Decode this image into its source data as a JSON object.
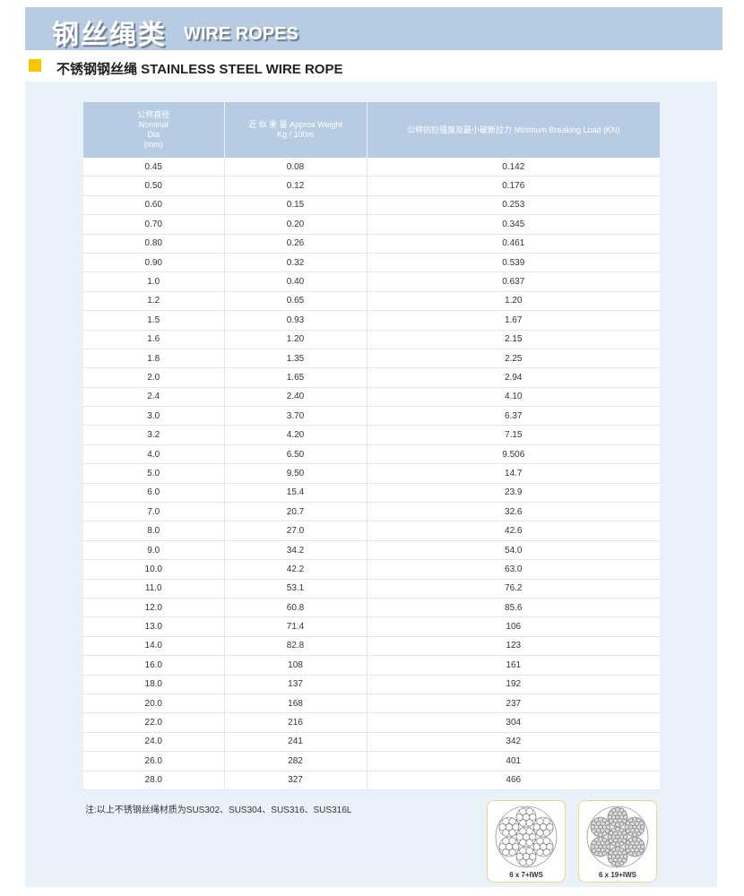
{
  "banner": {
    "title_cn": "钢丝绳类",
    "title_en": "WIRE ROPES"
  },
  "section": {
    "title": "不锈钢钢丝绳 STAINLESS STEEL WIRE ROPE",
    "marker_color": "#f7c600"
  },
  "table": {
    "headers": [
      "公称直径\nNominal\nDia\n(mm)",
      "近 似 重 量 Approx Weight\nKg / 100m",
      "公称抗拉强度及最小破断拉力 Minimum Breaking Load (KN)"
    ],
    "rows": [
      [
        "0.45",
        "0.08",
        "0.142"
      ],
      [
        "0.50",
        "0.12",
        "0.176"
      ],
      [
        "0.60",
        "0.15",
        "0.253"
      ],
      [
        "0.70",
        "0.20",
        "0.345"
      ],
      [
        "0.80",
        "0.26",
        "0.461"
      ],
      [
        "0.90",
        "0.32",
        "0.539"
      ],
      [
        "1.0",
        "0.40",
        "0.637"
      ],
      [
        "1.2",
        "0.65",
        "1.20"
      ],
      [
        "1.5",
        "0.93",
        "1.67"
      ],
      [
        "1.6",
        "1.20",
        "2.15"
      ],
      [
        "1.8",
        "1.35",
        "2.25"
      ],
      [
        "2.0",
        "1.65",
        "2.94"
      ],
      [
        "2.4",
        "2.40",
        "4.10"
      ],
      [
        "3.0",
        "3.70",
        "6.37"
      ],
      [
        "3.2",
        "4.20",
        "7.15"
      ],
      [
        "4.0",
        "6.50",
        "9.506"
      ],
      [
        "5.0",
        "9.50",
        "14.7"
      ],
      [
        "6.0",
        "15.4",
        "23.9"
      ],
      [
        "7.0",
        "20.7",
        "32.6"
      ],
      [
        "8.0",
        "27.0",
        "42.6"
      ],
      [
        "9.0",
        "34.2",
        "54.0"
      ],
      [
        "10.0",
        "42.2",
        "63.0"
      ],
      [
        "11.0",
        "53.1",
        "76.2"
      ],
      [
        "12.0",
        "60.8",
        "85.6"
      ],
      [
        "13.0",
        "71.4",
        "106"
      ],
      [
        "14.0",
        "82.8",
        "123"
      ],
      [
        "16.0",
        "108",
        "161"
      ],
      [
        "18.0",
        "137",
        "192"
      ],
      [
        "20.0",
        "168",
        "237"
      ],
      [
        "22.0",
        "216",
        "304"
      ],
      [
        "24.0",
        "241",
        "342"
      ],
      [
        "26.0",
        "282",
        "401"
      ],
      [
        "28.0",
        "327",
        "466"
      ]
    ]
  },
  "note": "注:以上不锈钢丝绳材质为SUS302、SUS304、SUS316、SUS316L",
  "ropes": [
    {
      "label": "6 x 7+IWS",
      "icon": "rope-cross-section-6x7"
    },
    {
      "label": "6 x 19+IWS",
      "icon": "rope-cross-section-6x19"
    }
  ]
}
